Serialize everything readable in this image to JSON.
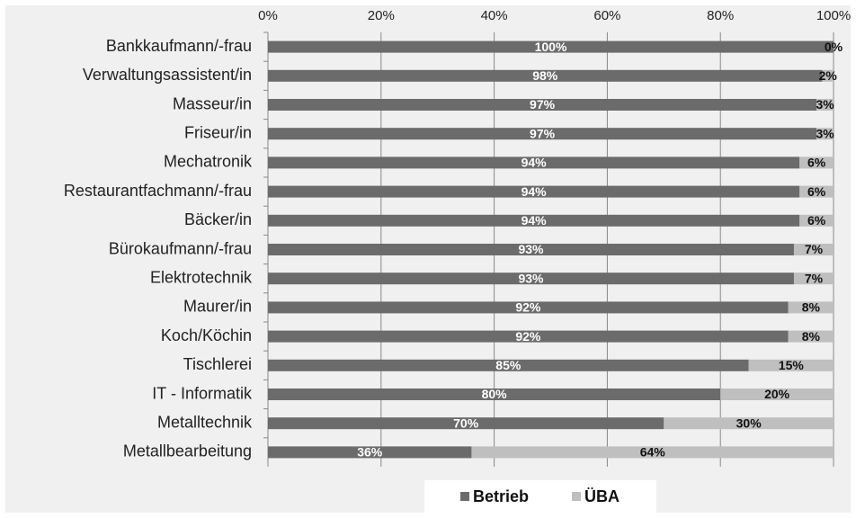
{
  "chart_data": {
    "type": "stacked-bar-horizontal",
    "categories": [
      "Bankkaufmann/-frau",
      "Verwaltungsassistent/in",
      "Masseur/in",
      "Friseur/in",
      "Mechatronik",
      "Restaurantfachmann/-frau",
      "Bäcker/in",
      "Bürokaufmann/-frau",
      "Elektrotechnik",
      "Maurer/in",
      "Koch/Köchin",
      "Tischlerei",
      "IT - Informatik",
      "Metalltechnik",
      "Metallbearbeitung"
    ],
    "series": [
      {
        "name": "Betrieb",
        "color": "#6b6b6b",
        "values": [
          100,
          98,
          97,
          97,
          94,
          94,
          94,
          93,
          93,
          92,
          92,
          85,
          80,
          70,
          36
        ],
        "value_labels": [
          "100%",
          "98%",
          "97%",
          "97%",
          "94%",
          "94%",
          "94%",
          "93%",
          "93%",
          "92%",
          "92%",
          "85%",
          "80%",
          "70%",
          "36%"
        ]
      },
      {
        "name": "ÜBA",
        "color": "#bfbfbf",
        "values": [
          0,
          2,
          3,
          3,
          6,
          6,
          6,
          7,
          7,
          8,
          8,
          15,
          20,
          30,
          64
        ],
        "value_labels": [
          "0%",
          "2%",
          "3%",
          "3%",
          "6%",
          "6%",
          "6%",
          "7%",
          "7%",
          "8%",
          "8%",
          "15%",
          "20%",
          "30%",
          "64%"
        ]
      }
    ],
    "xlim": [
      0,
      100
    ],
    "xticks": [
      {
        "value": 0,
        "label": "0%"
      },
      {
        "value": 20,
        "label": "20%"
      },
      {
        "value": 40,
        "label": "40%"
      },
      {
        "value": 60,
        "label": "60%"
      },
      {
        "value": 80,
        "label": "80%"
      },
      {
        "value": 100,
        "label": "100%"
      }
    ],
    "grid": true,
    "legend": "bottom"
  }
}
